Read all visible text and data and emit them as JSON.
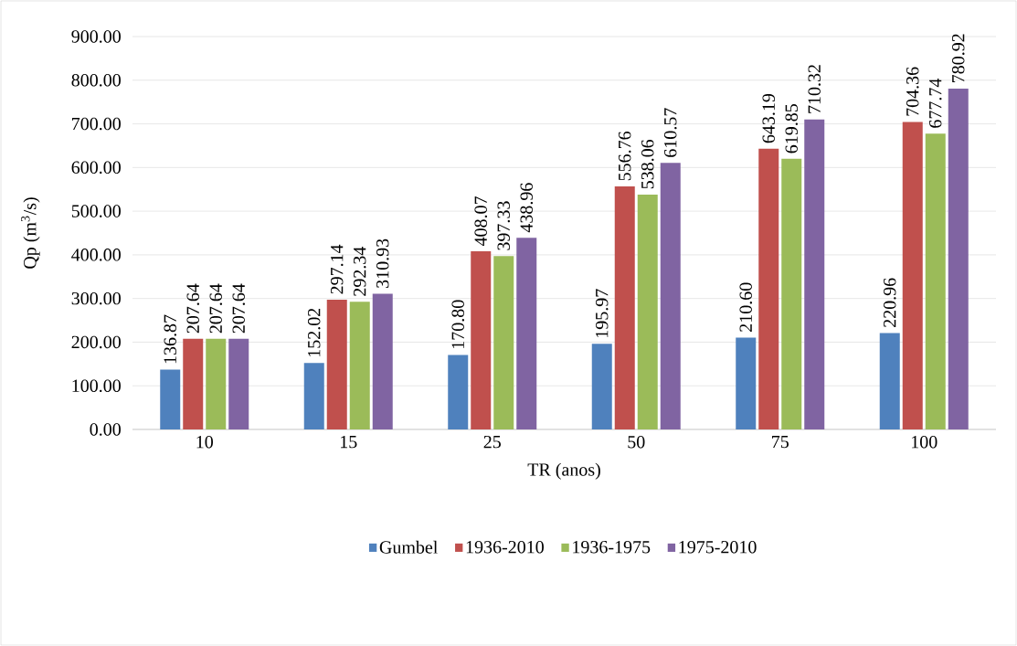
{
  "chart_data": {
    "type": "bar",
    "xlabel": "TR (anos)",
    "ylabel": "Qp (m$^{3}$/s)",
    "categories": [
      "10",
      "15",
      "25",
      "50",
      "75",
      "100"
    ],
    "series": [
      {
        "name": "Gumbel",
        "color": "#4f81bd",
        "values": [
          136.87,
          152.02,
          170.8,
          195.97,
          210.6,
          220.96
        ],
        "value_labels": [
          "136.87",
          "152.02",
          "170.80",
          "195.97",
          "210.60",
          "220.96"
        ]
      },
      {
        "name": "1936-2010",
        "color": "#c0504d",
        "values": [
          207.64,
          297.14,
          408.07,
          556.76,
          643.19,
          704.36
        ],
        "value_labels": [
          "207.64",
          "297.14",
          "408.07",
          "556.76",
          "643.19",
          "704.36"
        ]
      },
      {
        "name": "1936-1975",
        "color": "#9bbb59",
        "values": [
          207.64,
          292.34,
          397.33,
          538.06,
          619.85,
          677.74
        ],
        "value_labels": [
          "207.64",
          "292.34",
          "397.33",
          "538.06",
          "619.85",
          "677.74"
        ]
      },
      {
        "name": "1975-2010",
        "color": "#8064a2",
        "values": [
          207.64,
          310.93,
          438.96,
          610.57,
          710.32,
          780.92
        ],
        "value_labels": [
          "207.64",
          "310.93",
          "438.96",
          "610.57",
          "710.32",
          "780.92"
        ]
      }
    ],
    "ylim": [
      0,
      900
    ],
    "yticks": [
      {
        "value": 0,
        "label": "0.00"
      },
      {
        "value": 100,
        "label": "100.00"
      },
      {
        "value": 200,
        "label": "200.00"
      },
      {
        "value": 300,
        "label": "300.00"
      },
      {
        "value": 400,
        "label": "400.00"
      },
      {
        "value": 500,
        "label": "500.00"
      },
      {
        "value": 600,
        "label": "600.00"
      },
      {
        "value": 700,
        "label": "700.00"
      },
      {
        "value": 800,
        "label": "800.00"
      },
      {
        "value": 900,
        "label": "900.00"
      }
    ],
    "grid": "y",
    "legend": "bottom"
  }
}
